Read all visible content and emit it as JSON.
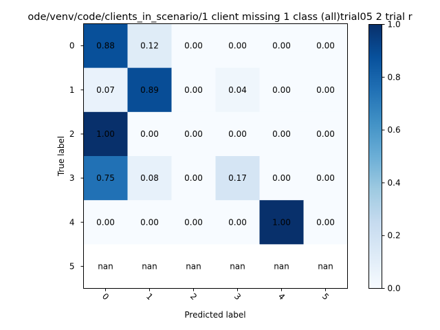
{
  "chart_data": {
    "type": "heatmap",
    "title": "ode/venv/code/clients_in_scenario/1 client missing 1 class (all)trial05 2 trial r",
    "xlabel": "Predicted label",
    "ylabel": "True label",
    "x_categories": [
      "0",
      "1",
      "2",
      "3",
      "4",
      "5"
    ],
    "y_categories": [
      "0",
      "1",
      "2",
      "3",
      "4",
      "5"
    ],
    "values": [
      [
        0.88,
        0.12,
        0.0,
        0.0,
        0.0,
        0.0
      ],
      [
        0.07,
        0.89,
        0.0,
        0.04,
        0.0,
        0.0
      ],
      [
        1.0,
        0.0,
        0.0,
        0.0,
        0.0,
        0.0
      ],
      [
        0.75,
        0.08,
        0.0,
        0.17,
        0.0,
        0.0
      ],
      [
        0.0,
        0.0,
        0.0,
        0.0,
        1.0,
        0.0
      ],
      [
        null,
        null,
        null,
        null,
        null,
        null
      ]
    ],
    "cell_labels": [
      [
        "0.88",
        "0.12",
        "0.00",
        "0.00",
        "0.00",
        "0.00"
      ],
      [
        "0.07",
        "0.89",
        "0.00",
        "0.04",
        "0.00",
        "0.00"
      ],
      [
        "1.00",
        "0.00",
        "0.00",
        "0.00",
        "0.00",
        "0.00"
      ],
      [
        "0.75",
        "0.08",
        "0.00",
        "0.17",
        "0.00",
        "0.00"
      ],
      [
        "0.00",
        "0.00",
        "0.00",
        "0.00",
        "1.00",
        "0.00"
      ],
      [
        "nan",
        "nan",
        "nan",
        "nan",
        "nan",
        "nan"
      ]
    ],
    "colorbar": {
      "colormap": "Blues",
      "range": [
        0.0,
        1.0
      ],
      "ticks": [
        0.0,
        0.2,
        0.4,
        0.6,
        0.8,
        1.0
      ],
      "tick_labels": [
        "0.0",
        "0.2",
        "0.4",
        "0.6",
        "0.8",
        "1.0"
      ]
    },
    "x_tick_rotation": 45,
    "grid": false
  }
}
